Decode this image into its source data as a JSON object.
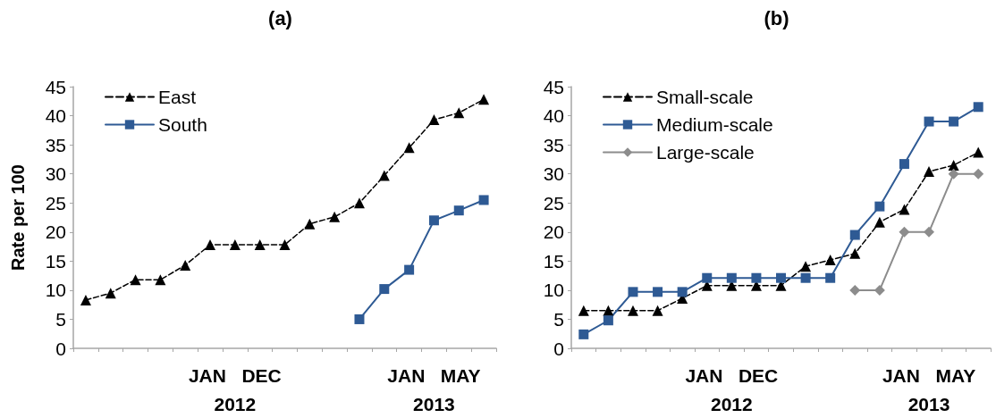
{
  "chart_data": [
    {
      "type": "line",
      "title": "(a)",
      "ylabel": "Rate per 100",
      "categories": [
        null,
        null,
        null,
        null,
        null,
        null,
        "JAN   DEC\n2012",
        null,
        null,
        null,
        null,
        null,
        null,
        null,
        "JAN   MAY\n2013",
        null,
        null
      ],
      "ylim": [
        0,
        45
      ],
      "yticks": [
        0,
        5,
        10,
        15,
        20,
        25,
        30,
        35,
        40,
        45
      ],
      "grid": false,
      "legend": "top left",
      "series": [
        {
          "name": "East",
          "color": "#000000",
          "marker": "triangle",
          "line_style": "dashed",
          "values": [
            8.3,
            9.5,
            11.8,
            11.8,
            14.3,
            17.8,
            17.8,
            17.8,
            17.8,
            21.4,
            22.6,
            25.0,
            29.7,
            34.5,
            39.3,
            40.5,
            42.8
          ]
        },
        {
          "name": "South",
          "color": "#2e5a94",
          "marker": "square",
          "line_style": "solid",
          "values": [
            null,
            null,
            null,
            null,
            null,
            null,
            null,
            null,
            null,
            null,
            null,
            5.0,
            10.2,
            13.5,
            22.0,
            23.7,
            25.5
          ]
        }
      ]
    },
    {
      "type": "line",
      "title": "(b)",
      "categories": [
        null,
        null,
        null,
        null,
        null,
        null,
        "JAN   DEC\n2012",
        null,
        null,
        null,
        null,
        null,
        null,
        null,
        "JAN   MAY\n2013",
        null,
        null
      ],
      "ylim": [
        0,
        45
      ],
      "yticks": [
        0,
        5,
        10,
        15,
        20,
        25,
        30,
        35,
        40,
        45
      ],
      "grid": false,
      "legend": "top left",
      "series": [
        {
          "name": "Small-scale",
          "color": "#000000",
          "marker": "triangle",
          "line_style": "dashed",
          "values": [
            6.5,
            6.5,
            6.5,
            6.5,
            8.6,
            10.8,
            10.8,
            10.8,
            10.8,
            14.1,
            15.2,
            16.3,
            21.7,
            23.9,
            30.4,
            31.5,
            33.7
          ]
        },
        {
          "name": "Medium-scale",
          "color": "#2e5a94",
          "marker": "square",
          "line_style": "solid",
          "values": [
            2.4,
            4.8,
            9.7,
            9.7,
            9.7,
            12.1,
            12.1,
            12.1,
            12.1,
            12.1,
            12.1,
            19.5,
            24.4,
            31.7,
            39.0,
            39.0,
            41.5
          ]
        },
        {
          "name": "Large-scale",
          "color": "#8c8c8c",
          "marker": "diamond",
          "line_style": "solid",
          "values": [
            null,
            null,
            null,
            null,
            null,
            null,
            null,
            null,
            null,
            null,
            null,
            10.0,
            10.0,
            20.0,
            20.0,
            30.0,
            30.0
          ]
        }
      ]
    }
  ]
}
